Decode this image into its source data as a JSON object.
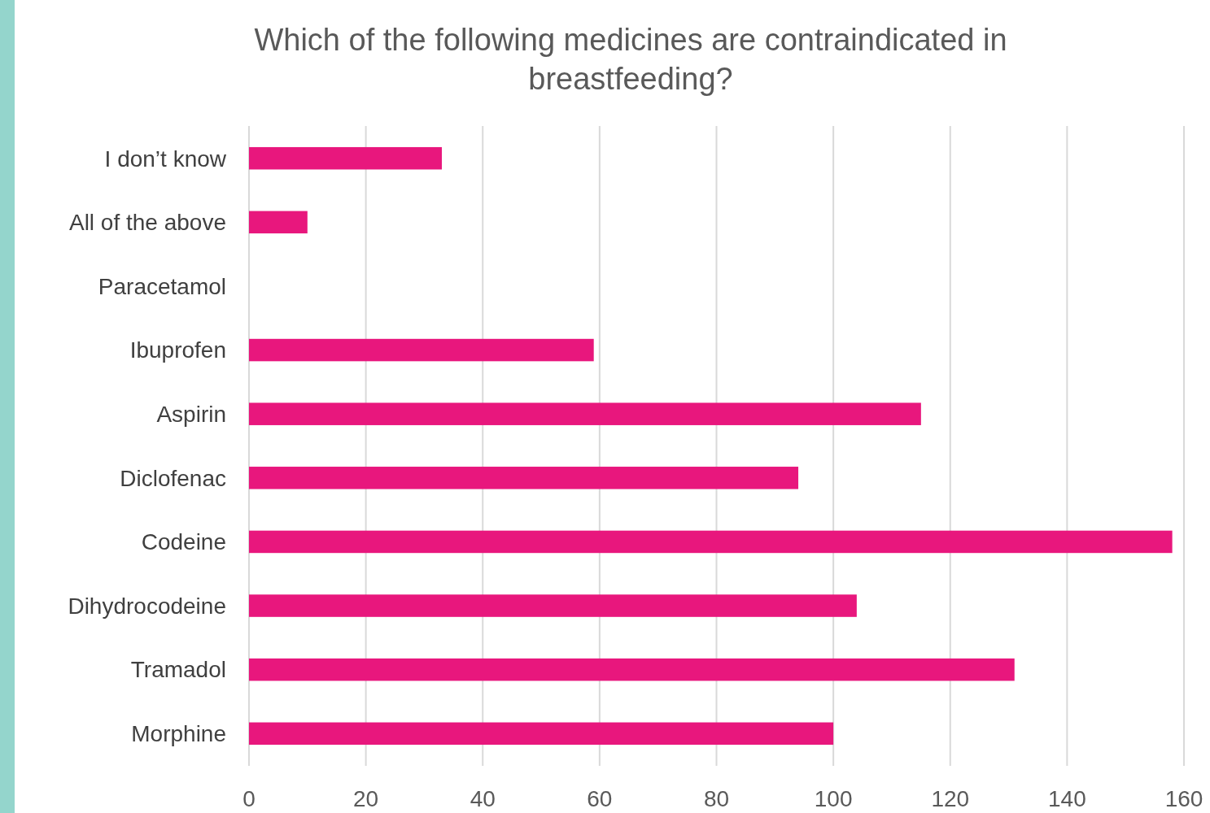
{
  "chart_data": {
    "type": "bar",
    "orientation": "horizontal",
    "title": "Which of the following medicines are contraindicated in breastfeeding?",
    "categories": [
      "I don’t know",
      "All of the above",
      "Paracetamol",
      "Ibuprofen",
      "Aspirin",
      "Diclofenac",
      "Codeine",
      "Dihydrocodeine",
      "Tramadol",
      "Morphine"
    ],
    "values": [
      33,
      10,
      0,
      59,
      115,
      94,
      158,
      104,
      131,
      100
    ],
    "color": "#e8177d",
    "xlim": [
      0,
      160
    ],
    "xticks": [
      0,
      20,
      40,
      60,
      80,
      100,
      120,
      140,
      160
    ],
    "grid": "x"
  }
}
